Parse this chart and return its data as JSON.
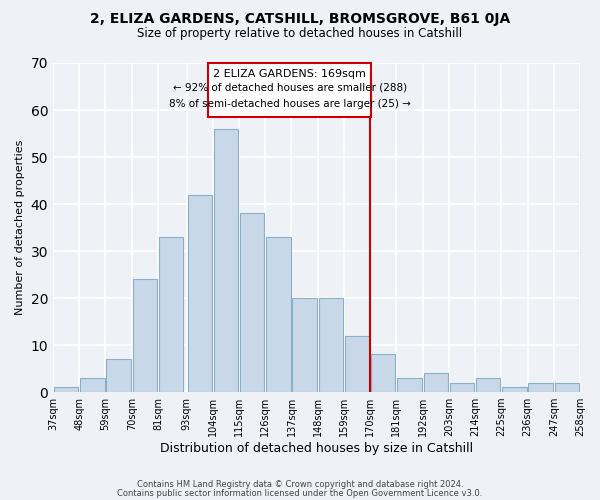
{
  "title": "2, ELIZA GARDENS, CATSHILL, BROMSGROVE, B61 0JA",
  "subtitle": "Size of property relative to detached houses in Catshill",
  "xlabel": "Distribution of detached houses by size in Catshill",
  "ylabel": "Number of detached properties",
  "bar_color": "#c8d8e8",
  "bar_edge_color": "#8aafc8",
  "bins_left": [
    37,
    48,
    59,
    70,
    81,
    93,
    104,
    115,
    126,
    137,
    148,
    159,
    170,
    181,
    192,
    203,
    214,
    225,
    236,
    247
  ],
  "bin_width": 11,
  "heights": [
    1,
    3,
    7,
    24,
    33,
    42,
    56,
    38,
    33,
    20,
    20,
    12,
    8,
    3,
    4,
    2,
    3,
    1,
    2,
    2
  ],
  "tick_labels": [
    "37sqm",
    "48sqm",
    "59sqm",
    "70sqm",
    "81sqm",
    "93sqm",
    "104sqm",
    "115sqm",
    "126sqm",
    "137sqm",
    "148sqm",
    "159sqm",
    "170sqm",
    "181sqm",
    "192sqm",
    "203sqm",
    "214sqm",
    "225sqm",
    "236sqm",
    "247sqm",
    "258sqm"
  ],
  "vline_x": 170,
  "vline_color": "#cc0000",
  "annotation_title": "2 ELIZA GARDENS: 169sqm",
  "annotation_line1": "← 92% of detached houses are smaller (288)",
  "annotation_line2": "8% of semi-detached houses are larger (25) →",
  "annotation_box_color": "#ffffff",
  "annotation_box_edge": "#cc0000",
  "ylim": [
    0,
    70
  ],
  "yticks": [
    0,
    10,
    20,
    30,
    40,
    50,
    60,
    70
  ],
  "footer1": "Contains HM Land Registry data © Crown copyright and database right 2024.",
  "footer2": "Contains public sector information licensed under the Open Government Licence v3.0.",
  "background_color": "#eef2f7",
  "grid_color": "#ffffff"
}
